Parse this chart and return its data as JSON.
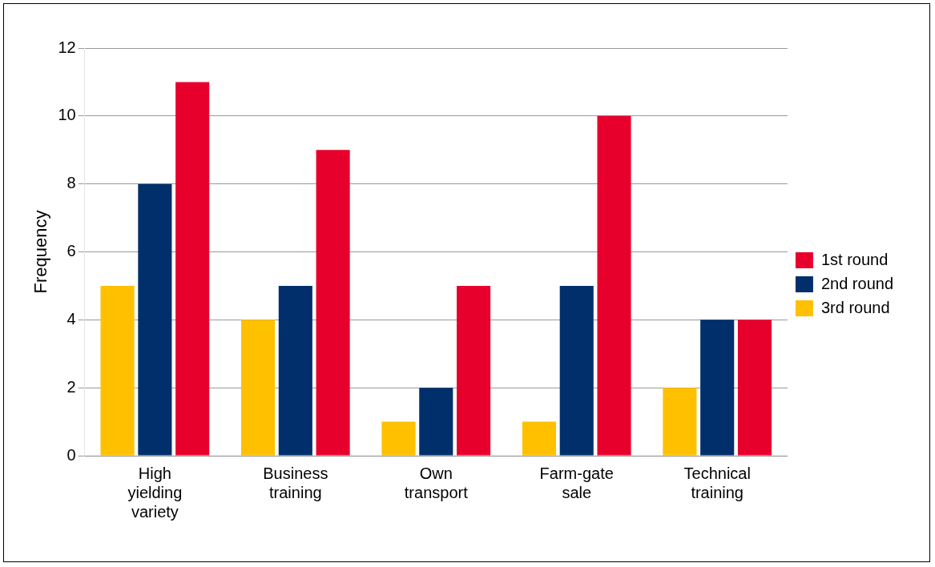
{
  "chart_data": {
    "type": "bar",
    "ylabel": "Frequency",
    "categories": [
      "High yielding variety",
      "Business training",
      "Own transport",
      "Farm-gate sale",
      "Technical training"
    ],
    "series": [
      {
        "name": "3rd round",
        "color": "#ffc000",
        "values": [
          5,
          4,
          1,
          1,
          2
        ]
      },
      {
        "name": "2nd round",
        "color": "#002f6c",
        "values": [
          8,
          5,
          2,
          5,
          4
        ]
      },
      {
        "name": "1st round",
        "color": "#e8002d",
        "values": [
          11,
          9,
          5,
          10,
          4
        ]
      }
    ],
    "ylim": [
      0,
      12
    ],
    "yticks": [
      0,
      2,
      4,
      6,
      8,
      10,
      12
    ],
    "grid": "y",
    "legend": "right"
  }
}
